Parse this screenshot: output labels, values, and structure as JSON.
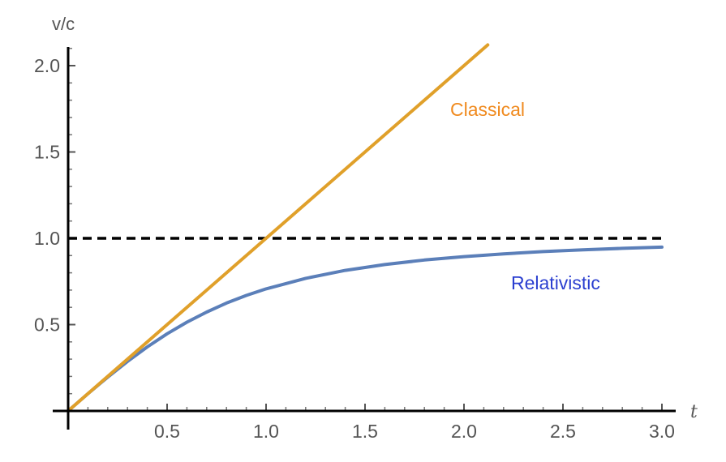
{
  "chart_data": {
    "type": "line",
    "xlabel": "t",
    "ylabel": "v/c",
    "xlim": [
      0,
      3.0
    ],
    "ylim": [
      0,
      2.12
    ],
    "x_ticks": [
      {
        "value": 0.5,
        "label": "0.5"
      },
      {
        "value": 1.0,
        "label": "1.0"
      },
      {
        "value": 1.5,
        "label": "1.5"
      },
      {
        "value": 2.0,
        "label": "2.0"
      },
      {
        "value": 2.5,
        "label": "2.5"
      },
      {
        "value": 3.0,
        "label": "3.0"
      }
    ],
    "y_ticks": [
      {
        "value": 0.5,
        "label": "0.5"
      },
      {
        "value": 1.0,
        "label": "1.0"
      },
      {
        "value": 1.5,
        "label": "1.5"
      },
      {
        "value": 2.0,
        "label": "2.0"
      }
    ],
    "grid": false,
    "series": [
      {
        "name": "Classical",
        "color": "#e0a02a",
        "label_color": "#f08a1e",
        "x": [
          0,
          0.5,
          1.0,
          1.5,
          2.0,
          2.12
        ],
        "y": [
          0,
          0.5,
          1.0,
          1.5,
          2.0,
          2.12
        ]
      },
      {
        "name": "Relativistic",
        "color": "#5b7fb9",
        "label_color": "#2b3fd0",
        "x": [
          0,
          0.1,
          0.2,
          0.3,
          0.4,
          0.5,
          0.6,
          0.7,
          0.8,
          0.9,
          1.0,
          1.2,
          1.4,
          1.6,
          1.8,
          2.0,
          2.2,
          2.4,
          2.6,
          2.8,
          3.0
        ],
        "y": [
          0,
          0.1,
          0.196,
          0.287,
          0.371,
          0.447,
          0.514,
          0.573,
          0.625,
          0.669,
          0.707,
          0.768,
          0.814,
          0.848,
          0.874,
          0.894,
          0.91,
          0.923,
          0.933,
          0.942,
          0.949
        ]
      },
      {
        "name": "",
        "color": "#000000",
        "dashed": true,
        "x": [
          0,
          3.0
        ],
        "y": [
          1.0,
          1.0
        ]
      }
    ]
  }
}
